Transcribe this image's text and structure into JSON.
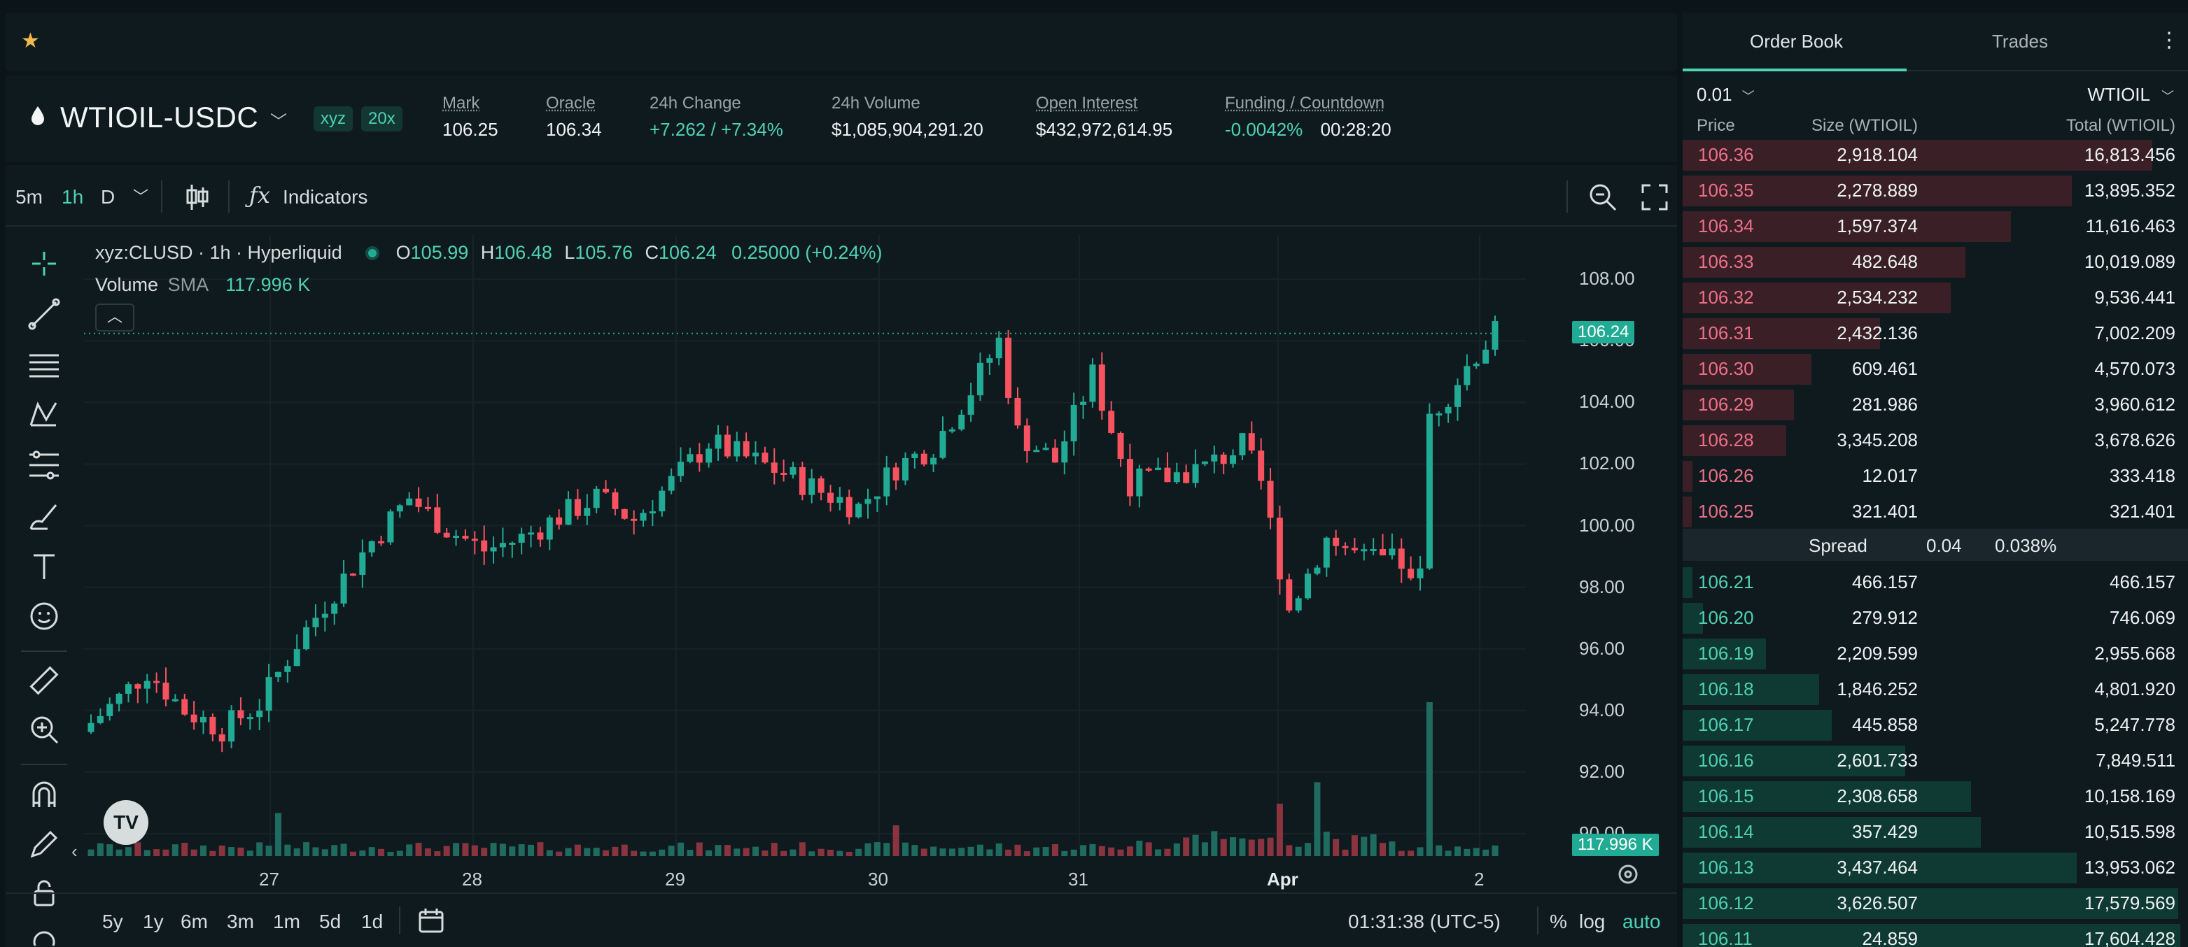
{
  "topbar": {
    "star_icon": "star-icon"
  },
  "market": {
    "symbol": "WTIOIL-USDC",
    "dex": "xyz",
    "leverage": "20x",
    "stats": [
      {
        "label": "Mark",
        "value": "106.25"
      },
      {
        "label": "Oracle",
        "value": "106.34"
      },
      {
        "label": "24h Change",
        "value": "+7.262 / +7.34%"
      },
      {
        "label": "24h Volume",
        "value": "$1,085,904,291.20"
      },
      {
        "label": "Open Interest",
        "value": "$432,972,614.95"
      },
      {
        "label": "Funding / Countdown",
        "value": "-0.0042%",
        "value2": "00:28:20"
      }
    ]
  },
  "chart_toolbar": {
    "intervals": [
      "5m",
      "1h",
      "D"
    ],
    "active_interval": "1h",
    "indicators_label": "Indicators"
  },
  "chart_legend": {
    "title": "xyz:CLUSD · 1h · Hyperliquid",
    "o_label": "O",
    "o": "105.99",
    "h_label": "H",
    "h": "106.48",
    "l_label": "L",
    "l": "105.76",
    "c_label": "C",
    "c": "106.24",
    "change": "0.25000 (+0.24%)",
    "volume_label": "Volume",
    "sma_label": "SMA",
    "sma_value": "117.996 K"
  },
  "chart_bottom": {
    "ranges": [
      "5y",
      "1y",
      "6m",
      "3m",
      "1m",
      "5d",
      "1d"
    ],
    "time": "01:31:38 (UTC-5)",
    "percent": "%",
    "log": "log",
    "auto": "auto"
  },
  "colors": {
    "up": "#22ab94",
    "down": "#f7525f",
    "accent": "#4fd1b4"
  },
  "chart_data": {
    "type": "candlestick",
    "x_tick_labels": [
      "27",
      "28",
      "29",
      "30",
      "31",
      "Apr",
      "2"
    ],
    "y_tick_labels": [
      "108.00",
      "106.00",
      "104.00",
      "102.00",
      "100.00",
      "98.00",
      "96.00",
      "94.00",
      "92.00",
      "90.00"
    ],
    "ylim": [
      89.0,
      108.8
    ],
    "last_price_tag": "106.24",
    "volume_tag": "117.996 K",
    "last": 106.24,
    "close_path": [
      [
        0,
        93.6
      ],
      [
        3,
        94.4
      ],
      [
        6,
        95.3
      ],
      [
        10,
        94.0
      ],
      [
        14,
        93.4
      ],
      [
        18,
        94.2
      ],
      [
        22,
        96.2
      ],
      [
        26,
        97.9
      ],
      [
        30,
        99.5
      ],
      [
        34,
        100.9
      ],
      [
        38,
        99.9
      ],
      [
        42,
        99.2
      ],
      [
        46,
        99.6
      ],
      [
        50,
        100.3
      ],
      [
        54,
        100.9
      ],
      [
        58,
        100.2
      ],
      [
        62,
        101.4
      ],
      [
        66,
        102.7
      ],
      [
        70,
        102.2
      ],
      [
        74,
        101.7
      ],
      [
        78,
        101.1
      ],
      [
        82,
        100.6
      ],
      [
        86,
        101.9
      ],
      [
        90,
        102.6
      ],
      [
        94,
        104.4
      ],
      [
        97,
        106.0
      ],
      [
        99,
        103.0
      ],
      [
        103,
        102.1
      ],
      [
        107,
        104.9
      ],
      [
        111,
        101.4
      ],
      [
        115,
        101.6
      ],
      [
        119,
        101.9
      ],
      [
        123,
        102.6
      ],
      [
        125,
        101.4
      ],
      [
        128,
        97.3
      ],
      [
        132,
        99.6
      ],
      [
        136,
        98.9
      ],
      [
        140,
        98.8
      ],
      [
        142,
        98.3
      ],
      [
        143,
        103.6
      ],
      [
        145,
        104.3
      ],
      [
        148,
        105.6
      ],
      [
        150,
        106.24
      ]
    ],
    "volume_spikes": [
      [
        20,
        28
      ],
      [
        86,
        20
      ],
      [
        127,
        34
      ],
      [
        131,
        48
      ],
      [
        143,
        100
      ]
    ]
  },
  "orderbook": {
    "tabs": [
      "Order Book",
      "Trades"
    ],
    "tick": "0.01",
    "unit": "WTIOIL",
    "headers": [
      "Price",
      "Size (WTIOIL)",
      "Total (WTIOIL)"
    ],
    "asks": [
      {
        "price": "106.36",
        "size": "2,918.104",
        "total": "16,813.456",
        "depth": 0.93
      },
      {
        "price": "106.35",
        "size": "2,278.889",
        "total": "13,895.352",
        "depth": 0.77
      },
      {
        "price": "106.34",
        "size": "1,597.374",
        "total": "11,616.463",
        "depth": 0.65
      },
      {
        "price": "106.33",
        "size": "482.648",
        "total": "10,019.089",
        "depth": 0.56
      },
      {
        "price": "106.32",
        "size": "2,534.232",
        "total": "9,536.441",
        "depth": 0.53
      },
      {
        "price": "106.31",
        "size": "2,432.136",
        "total": "7,002.209",
        "depth": 0.39
      },
      {
        "price": "106.30",
        "size": "609.461",
        "total": "4,570.073",
        "depth": 0.255
      },
      {
        "price": "106.29",
        "size": "281.986",
        "total": "3,960.612",
        "depth": 0.22
      },
      {
        "price": "106.28",
        "size": "3,345.208",
        "total": "3,678.626",
        "depth": 0.205
      },
      {
        "price": "106.26",
        "size": "12.017",
        "total": "333.418",
        "depth": 0.02
      },
      {
        "price": "106.25",
        "size": "321.401",
        "total": "321.401",
        "depth": 0.018
      }
    ],
    "spread_label": "Spread",
    "spread": "0.04",
    "spread_pct": "0.038%",
    "bids": [
      {
        "price": "106.21",
        "size": "466.157",
        "total": "466.157",
        "depth": 0.02
      },
      {
        "price": "106.20",
        "size": "279.912",
        "total": "746.069",
        "depth": 0.04
      },
      {
        "price": "106.19",
        "size": "2,209.599",
        "total": "2,955.668",
        "depth": 0.165
      },
      {
        "price": "106.18",
        "size": "1,846.252",
        "total": "4,801.920",
        "depth": 0.27
      },
      {
        "price": "106.17",
        "size": "445.858",
        "total": "5,247.778",
        "depth": 0.295
      },
      {
        "price": "106.16",
        "size": "2,601.733",
        "total": "7,849.511",
        "depth": 0.44
      },
      {
        "price": "106.15",
        "size": "2,308.658",
        "total": "10,158.169",
        "depth": 0.57
      },
      {
        "price": "106.14",
        "size": "357.429",
        "total": "10,515.598",
        "depth": 0.59
      },
      {
        "price": "106.13",
        "size": "3,437.464",
        "total": "13,953.062",
        "depth": 0.78
      },
      {
        "price": "106.12",
        "size": "3,626.507",
        "total": "17,579.569",
        "depth": 0.98
      },
      {
        "price": "106.11",
        "size": "24.859",
        "total": "17,604.428",
        "depth": 0.985
      }
    ]
  }
}
